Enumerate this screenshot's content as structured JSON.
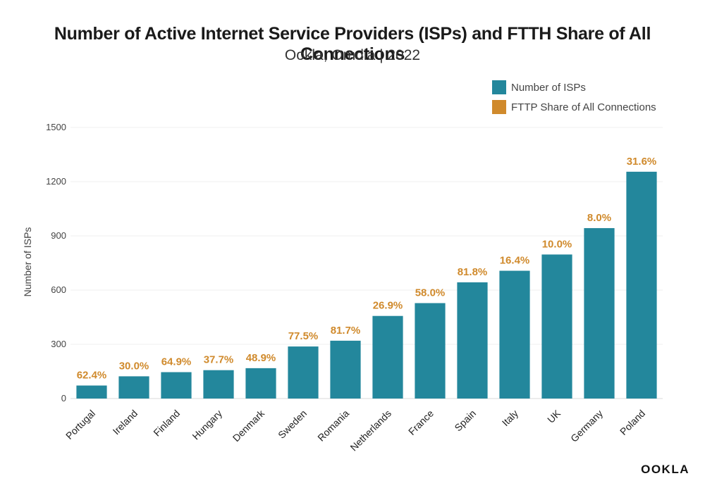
{
  "chart_data": {
    "type": "bar",
    "title": "Number of Active Internet Service Providers (ISPs) and FTTH Share of All Connections",
    "subtitle": "Ookla, Omdia | 2022",
    "ylabel": "Number of ISPs",
    "ylim": [
      0,
      1500
    ],
    "yticks": [
      0,
      300,
      600,
      900,
      1200,
      1500
    ],
    "grid": true,
    "legend_position": "top-right",
    "categories": [
      "Portugal",
      "Ireland",
      "Finland",
      "Hungary",
      "Denmark",
      "Sweden",
      "Romania",
      "Netherlands",
      "France",
      "Spain",
      "Italy",
      "UK",
      "Germany",
      "Poland"
    ],
    "series": [
      {
        "name": "Number of ISPs",
        "color": "#23879c",
        "values": [
          72,
          123,
          146,
          157,
          168,
          288,
          320,
          457,
          528,
          643,
          707,
          797,
          943,
          1255
        ]
      },
      {
        "name": "FTTP Share of All Connections",
        "color": "#d08a2c",
        "labels": [
          "62.4%",
          "30.0%",
          "64.9%",
          "37.7%",
          "48.9%",
          "77.5%",
          "81.7%",
          "26.9%",
          "58.0%",
          "81.8%",
          "16.4%",
          "10.0%",
          "8.0%",
          "31.6%"
        ]
      }
    ]
  },
  "logo_text": "OOKLA"
}
